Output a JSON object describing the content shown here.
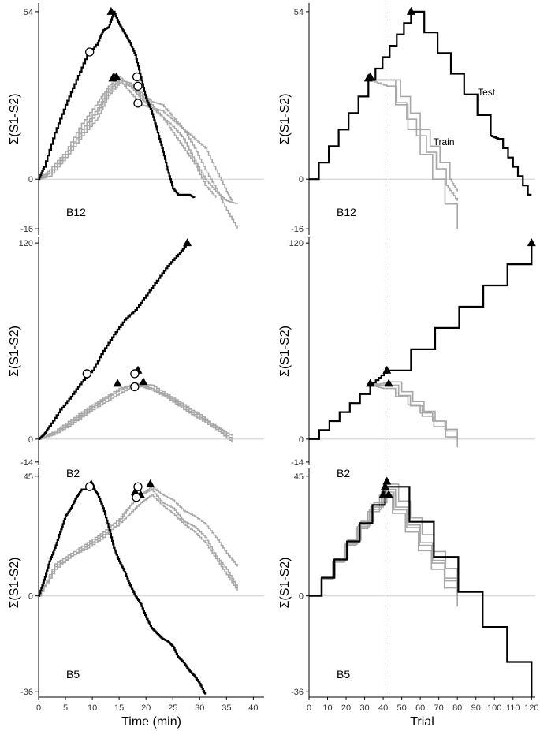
{
  "chart_data": [
    {
      "type": "line",
      "id": "left-b12",
      "label": "B12",
      "ylabel": "Σ(S1-S2)",
      "xlabel": "",
      "xlim": [
        0,
        42
      ],
      "ylim": [
        -18,
        56
      ],
      "yticks": [
        "54",
        "0",
        "-16"
      ],
      "ytick_values": [
        54,
        0,
        -16
      ],
      "xticks": [],
      "zero_line": true,
      "series": [
        {
          "role": "test",
          "color": "#000000",
          "x": [
            0,
            1,
            3,
            5,
            7,
            9,
            11,
            12,
            13,
            14,
            15,
            16,
            17,
            18,
            19,
            20,
            21,
            22,
            23,
            24,
            25,
            26,
            27,
            28,
            29
          ],
          "y": [
            0,
            4,
            15,
            24,
            32,
            40,
            44,
            48,
            49,
            54,
            50,
            47,
            44,
            40,
            33,
            26,
            22,
            16,
            10,
            3,
            -3,
            -5,
            -5,
            -5,
            -6
          ]
        },
        {
          "role": "train",
          "color": "#a8a8a8",
          "x": [
            0,
            2,
            5,
            8,
            11,
            13,
            15,
            17,
            19,
            21,
            23,
            25,
            27,
            29,
            31,
            33,
            35,
            36
          ],
          "y": [
            0,
            2,
            8,
            16,
            23,
            29,
            32,
            28,
            24,
            23,
            22,
            19,
            16,
            13,
            10,
            3,
            -4,
            -7
          ]
        },
        {
          "role": "train",
          "color": "#a8a8a8",
          "x": [
            0,
            2,
            5,
            8,
            11,
            13,
            15,
            17,
            19,
            21,
            23,
            25,
            27,
            29,
            31,
            33,
            35,
            37
          ],
          "y": [
            0,
            3,
            9,
            18,
            25,
            30,
            33,
            30,
            26,
            23,
            20,
            17,
            13,
            6,
            0,
            -4,
            -7,
            -8
          ]
        },
        {
          "role": "train",
          "color": "#a8a8a8",
          "x": [
            0,
            2,
            5,
            8,
            11,
            13,
            15,
            17,
            19,
            21,
            23,
            25,
            27,
            29,
            31,
            33,
            35,
            37
          ],
          "y": [
            0,
            1,
            7,
            14,
            20,
            27,
            31,
            30,
            28,
            25,
            24,
            20,
            16,
            10,
            3,
            -3,
            -10,
            -16
          ]
        },
        {
          "role": "train",
          "color": "#a8a8a8",
          "x": [
            0,
            2,
            5,
            8,
            11,
            13,
            15,
            17,
            19,
            21,
            23,
            25,
            27,
            29,
            31,
            33
          ],
          "y": [
            0,
            2,
            8,
            15,
            22,
            28,
            32,
            31,
            27,
            24,
            20,
            15,
            10,
            5,
            -2,
            -6
          ]
        }
      ],
      "triangles": [
        [
          13.5,
          54
        ],
        [
          14,
          33
        ],
        [
          14.5,
          33
        ],
        [
          13.8,
          32.5
        ]
      ],
      "circles": [
        [
          9.5,
          41
        ],
        [
          18.3,
          33
        ],
        [
          18.5,
          30
        ],
        [
          18.5,
          24.5
        ]
      ]
    },
    {
      "type": "line",
      "id": "right-b12",
      "label": "B12",
      "ylabel": "Σ(S1-S2)",
      "xlabel": "",
      "xlim": [
        0,
        122
      ],
      "ylim": [
        -18,
        56
      ],
      "yticks": [
        "54",
        "0",
        "-16"
      ],
      "ytick_values": [
        54,
        0,
        -16
      ],
      "xticks": [],
      "zero_line": true,
      "series": [
        {
          "role": "test",
          "color": "#000000",
          "x": [
            0,
            32,
            55,
            98,
            102,
            118,
            120
          ],
          "y": [
            0,
            32,
            54,
            14,
            13,
            -5,
            -5
          ]
        },
        {
          "role": "train",
          "color": "#a8a8a8",
          "x": [
            0,
            32,
            44,
            76,
            80
          ],
          "y": [
            0,
            32,
            32,
            0,
            -4
          ]
        },
        {
          "role": "train",
          "color": "#a8a8a8",
          "x": [
            0,
            32,
            42,
            74,
            80
          ],
          "y": [
            0,
            32,
            30,
            -2,
            -7
          ]
        },
        {
          "role": "train",
          "color": "#a8a8a8",
          "x": [
            0,
            32,
            40,
            80
          ],
          "y": [
            0,
            32,
            32,
            -16
          ]
        }
      ],
      "triangles": [
        [
          32,
          32.5
        ],
        [
          33,
          33
        ],
        [
          55,
          54
        ]
      ],
      "circles": [],
      "annotations": [
        {
          "text": "Test",
          "x": 91,
          "y": 27
        },
        {
          "text": "Train",
          "x": 67,
          "y": 11
        }
      ]
    },
    {
      "type": "line",
      "id": "left-b2",
      "label": "B2",
      "ylabel": "Σ(S1-S2)",
      "xlabel": "",
      "xlim": [
        0,
        42
      ],
      "ylim": [
        -16,
        122
      ],
      "yticks": [
        "120",
        "0",
        "-14"
      ],
      "ytick_values": [
        120,
        0,
        -14
      ],
      "xticks": [],
      "zero_line": true,
      "series": [
        {
          "role": "test",
          "color": "#000000",
          "x": [
            0,
            1,
            2,
            4,
            6,
            8,
            10,
            12,
            14,
            16,
            18,
            20,
            22,
            24,
            26,
            27.7
          ],
          "y": [
            0,
            3,
            8,
            18,
            26,
            35,
            42,
            54,
            64,
            73,
            79,
            88,
            97,
            106,
            113,
            120
          ]
        },
        {
          "role": "train",
          "color": "#a8a8a8",
          "x": [
            0,
            3,
            6,
            9,
            12,
            15,
            18,
            21,
            24,
            27,
            30,
            33,
            36
          ],
          "y": [
            0,
            5,
            12,
            19,
            25,
            31,
            34,
            30,
            26,
            20,
            15,
            7,
            2
          ]
        },
        {
          "role": "train",
          "color": "#a8a8a8",
          "x": [
            0,
            3,
            6,
            9,
            12,
            15,
            18,
            21,
            24,
            27,
            30,
            33,
            36
          ],
          "y": [
            0,
            4,
            10,
            17,
            24,
            30,
            34,
            33,
            27,
            21,
            14,
            6,
            0
          ]
        },
        {
          "role": "train",
          "color": "#a8a8a8",
          "x": [
            0,
            3,
            6,
            9,
            12,
            15,
            18,
            21,
            24,
            27,
            30,
            33,
            36
          ],
          "y": [
            0,
            3,
            9,
            16,
            22,
            28,
            33,
            30,
            25,
            18,
            12,
            6,
            -2
          ]
        },
        {
          "role": "train",
          "color": "#a8a8a8",
          "x": [
            0,
            3,
            6,
            9,
            12,
            15,
            18,
            21,
            24,
            27,
            30,
            33,
            35
          ],
          "y": [
            0,
            4,
            11,
            18,
            24,
            30,
            34,
            31,
            26,
            19,
            13,
            8,
            4
          ]
        }
      ],
      "triangles": [
        [
          14.7,
          34
        ],
        [
          18.5,
          42
        ],
        [
          19.5,
          35
        ],
        [
          27.7,
          120
        ]
      ],
      "circles": [
        [
          9,
          40
        ],
        [
          17.9,
          40
        ],
        [
          17.9,
          32
        ]
      ]
    },
    {
      "type": "line",
      "id": "right-b2",
      "label": "B2",
      "ylabel": "Σ(S1-S2)",
      "xlabel": "",
      "xlim": [
        0,
        122
      ],
      "ylim": [
        -16,
        122
      ],
      "yticks": [
        "120",
        "0",
        "-14"
      ],
      "ytick_values": [
        120,
        0,
        -14
      ],
      "xticks": [],
      "zero_line": true,
      "series": [
        {
          "role": "test",
          "color": "#000000",
          "x": [
            0,
            33,
            42,
            120
          ],
          "y": [
            0,
            33,
            42,
            120
          ]
        },
        {
          "role": "train",
          "color": "#a8a8a8",
          "x": [
            0,
            33,
            42,
            80
          ],
          "y": [
            0,
            33,
            33,
            -5
          ]
        },
        {
          "role": "train",
          "color": "#a8a8a8",
          "x": [
            0,
            33,
            44,
            80
          ],
          "y": [
            0,
            33,
            35,
            -1
          ]
        },
        {
          "role": "train",
          "color": "#a8a8a8",
          "x": [
            0,
            33,
            40,
            80
          ],
          "y": [
            0,
            33,
            31,
            1
          ]
        }
      ],
      "triangles": [
        [
          33,
          34
        ],
        [
          42,
          42
        ],
        [
          43,
          34
        ],
        [
          120,
          120
        ]
      ],
      "circles": []
    },
    {
      "type": "line",
      "id": "left-b5",
      "label": "B5",
      "ylabel": "Σ(S1-S2)",
      "xlabel": "Time (min)",
      "xlim": [
        0,
        42
      ],
      "ylim": [
        -38,
        47
      ],
      "yticks": [
        "45",
        "0",
        "-36"
      ],
      "ytick_values": [
        45,
        0,
        -36
      ],
      "xticks": [
        "0",
        "5",
        "10",
        "15",
        "20",
        "25",
        "30",
        "35",
        "40"
      ],
      "xtick_values": [
        0,
        5,
        10,
        15,
        20,
        25,
        30,
        35,
        40
      ],
      "zero_line": true,
      "series": [
        {
          "role": "test",
          "color": "#000000",
          "x": [
            0,
            1,
            2,
            3,
            4,
            5,
            6,
            7,
            8,
            9,
            10,
            11,
            12,
            13,
            14,
            15,
            16,
            17,
            18,
            19,
            20,
            21,
            22,
            23,
            24,
            25,
            26,
            27,
            28,
            29,
            30,
            31
          ],
          "y": [
            0,
            6,
            13,
            18,
            24,
            30,
            33,
            37,
            40,
            40,
            41,
            38,
            33,
            26,
            18,
            13,
            9,
            4,
            0,
            -3,
            -8,
            -12,
            -14,
            -16,
            -17,
            -19,
            -23,
            -25,
            -28,
            -30,
            -33,
            -37
          ]
        },
        {
          "role": "train",
          "color": "#a8a8a8",
          "x": [
            0,
            3,
            6,
            9,
            12,
            15,
            17,
            19,
            21,
            23,
            25,
            27,
            29,
            31,
            33,
            35,
            37
          ],
          "y": [
            0,
            10,
            15,
            18,
            22,
            28,
            34,
            38,
            40,
            35,
            33,
            28,
            26,
            22,
            15,
            10,
            3
          ]
        },
        {
          "role": "train",
          "color": "#a8a8a8",
          "x": [
            0,
            3,
            6,
            9,
            12,
            15,
            17,
            19,
            21,
            23,
            25,
            27,
            29,
            31,
            33,
            35,
            37
          ],
          "y": [
            0,
            12,
            16,
            20,
            24,
            29,
            34,
            38,
            41,
            38,
            36,
            32,
            30,
            27,
            22,
            16,
            11
          ]
        },
        {
          "role": "train",
          "color": "#a8a8a8",
          "x": [
            0,
            3,
            6,
            9,
            12,
            15,
            17,
            19,
            21,
            23,
            25,
            27,
            29,
            31,
            33,
            35,
            37
          ],
          "y": [
            0,
            11,
            15,
            19,
            23,
            27,
            31,
            35,
            38,
            34,
            31,
            27,
            24,
            20,
            14,
            8,
            2
          ]
        }
      ],
      "triangles": [
        [
          9.8,
          42
        ],
        [
          18,
          39
        ],
        [
          19,
          38
        ],
        [
          20.8,
          42
        ]
      ],
      "circles": [
        [
          9.5,
          41
        ],
        [
          18.5,
          41
        ],
        [
          18.2,
          37
        ]
      ]
    },
    {
      "type": "line",
      "id": "right-b5",
      "label": "B5",
      "ylabel": "Σ(S1-S2)",
      "xlabel": "Trial",
      "xlim": [
        0,
        122
      ],
      "ylim": [
        -38,
        47
      ],
      "yticks": [
        "45",
        "0",
        "-36"
      ],
      "ytick_values": [
        45,
        0,
        -36
      ],
      "xticks": [
        "0",
        "10",
        "20",
        "30",
        "40",
        "50",
        "60",
        "70",
        "80",
        "90",
        "100",
        "110",
        "120"
      ],
      "xtick_values": [
        0,
        10,
        20,
        30,
        40,
        50,
        60,
        70,
        80,
        90,
        100,
        110,
        120
      ],
      "zero_line": true,
      "series": [
        {
          "role": "test",
          "color": "#000000",
          "x": [
            0,
            41,
            120
          ],
          "y": [
            0,
            41,
            -38
          ]
        },
        {
          "role": "train",
          "color": "#a8a8a8",
          "x": [
            0,
            38,
            80
          ],
          "y": [
            0,
            38,
            -4
          ]
        },
        {
          "role": "train",
          "color": "#a8a8a8",
          "x": [
            0,
            39,
            80
          ],
          "y": [
            0,
            39,
            -1
          ]
        },
        {
          "role": "train",
          "color": "#a8a8a8",
          "x": [
            0,
            40,
            80
          ],
          "y": [
            0,
            40,
            0
          ]
        },
        {
          "role": "train",
          "color": "#a8a8a8",
          "x": [
            0,
            42,
            80
          ],
          "y": [
            0,
            42,
            4
          ]
        }
      ],
      "triangles": [
        [
          40,
          38
        ],
        [
          41,
          41
        ],
        [
          42,
          43
        ],
        [
          43,
          38
        ]
      ],
      "circles": []
    }
  ],
  "shared": {
    "dashed_line_x": 41,
    "dashed_color": "#bbbbbb",
    "zero_line_color": "#cccccc"
  }
}
